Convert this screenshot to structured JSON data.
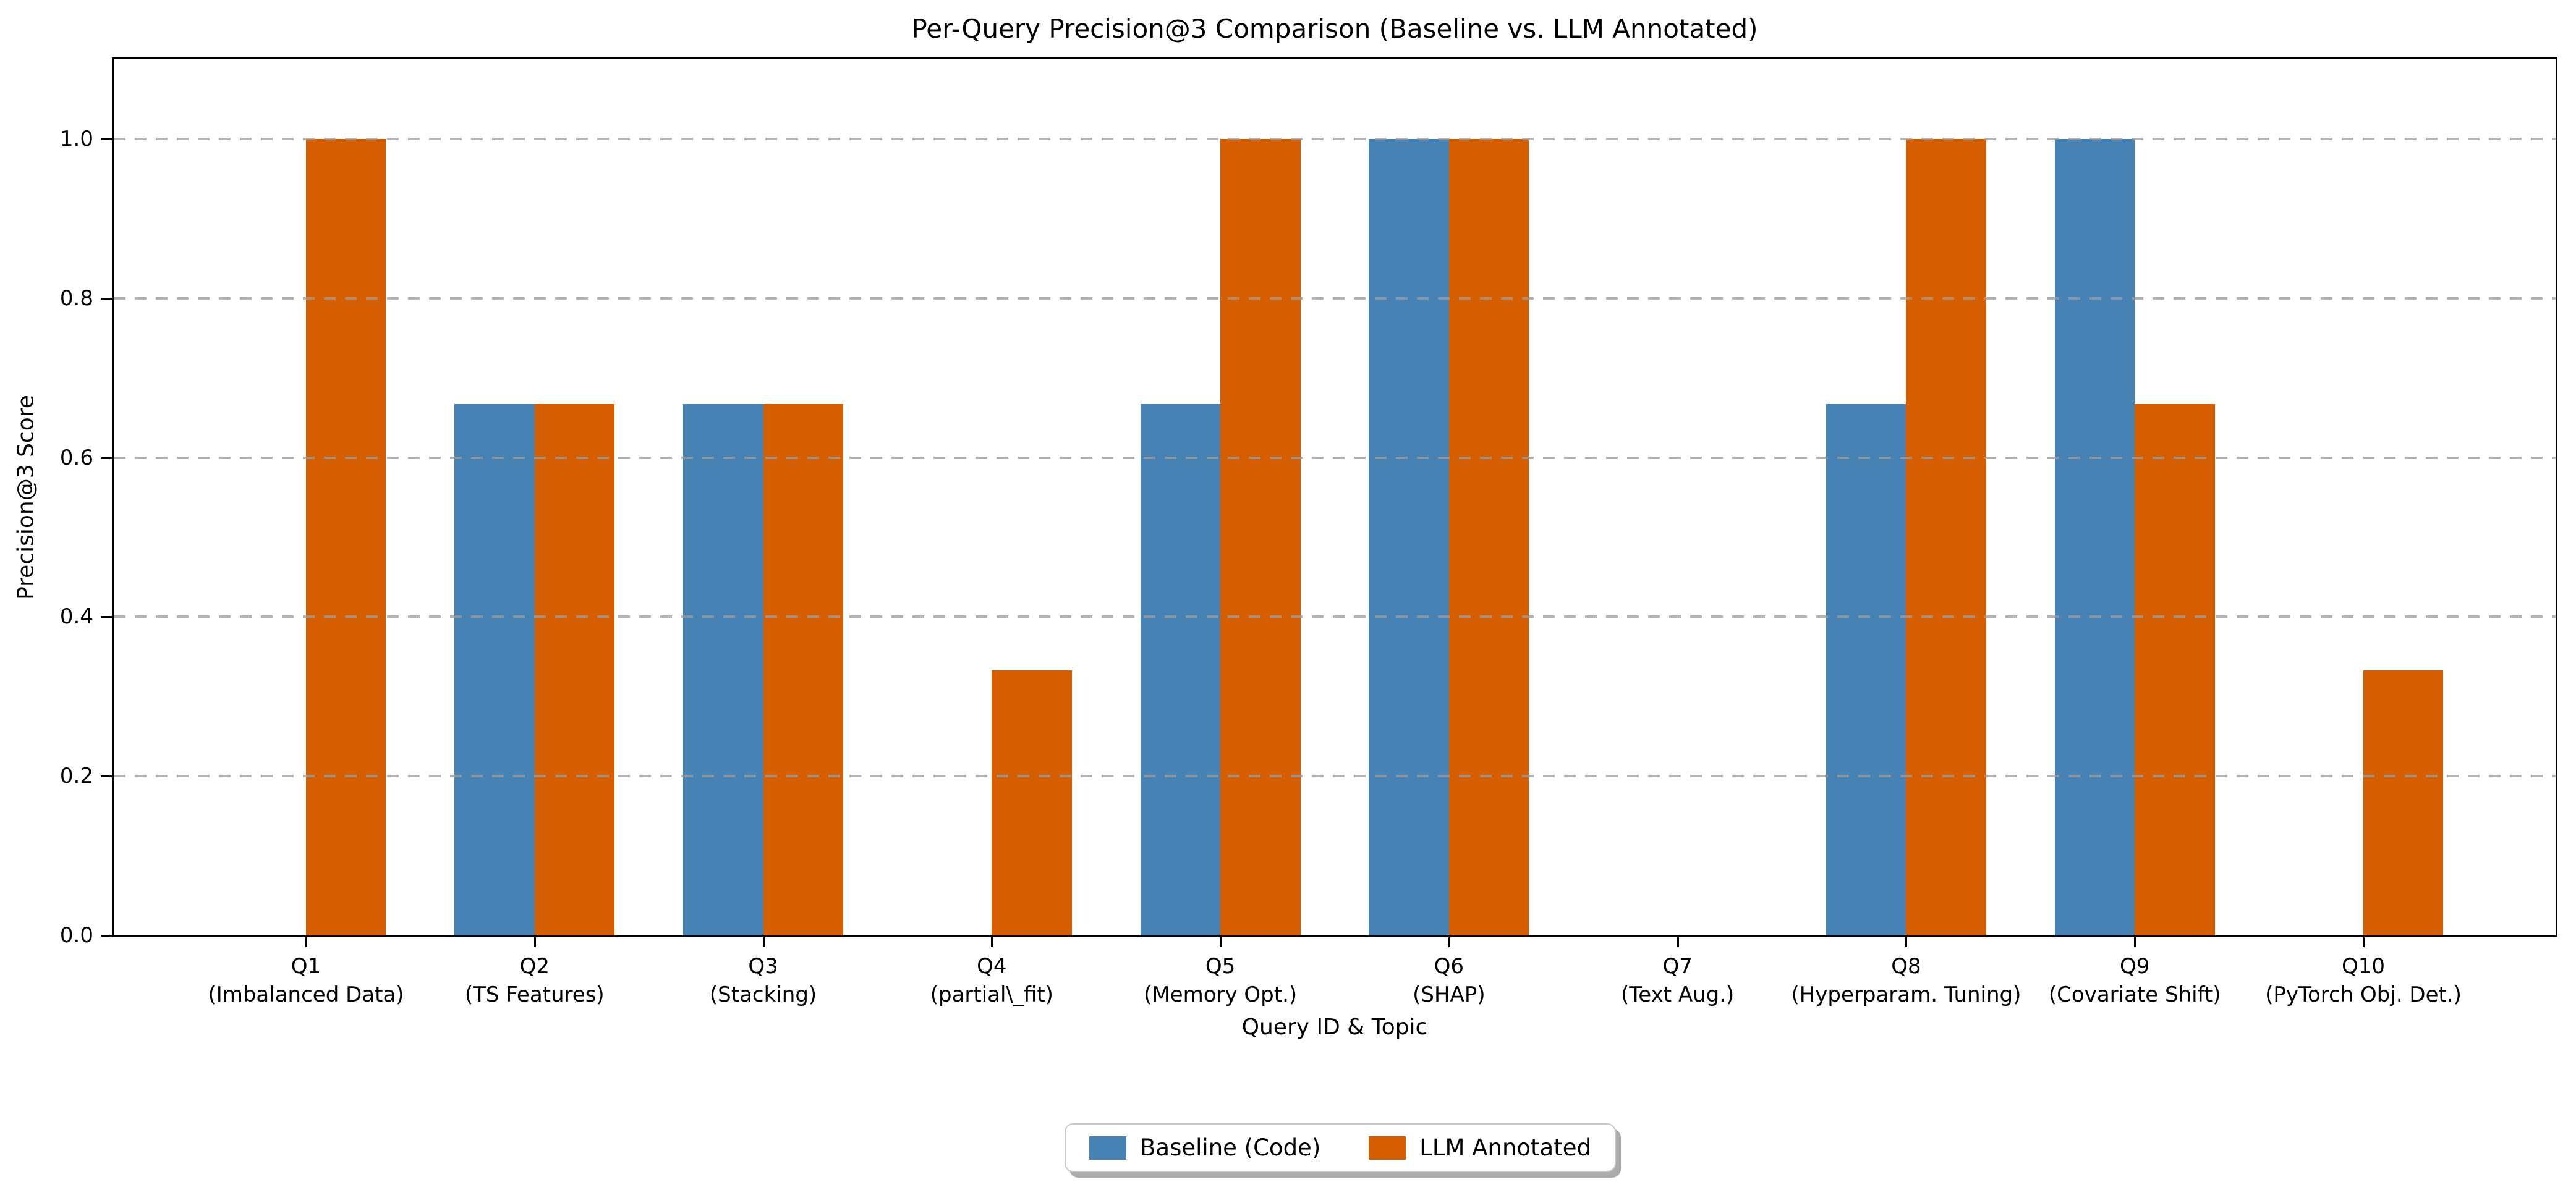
{
  "chart_data": {
    "type": "bar",
    "title": "Per-Query Precision@3 Comparison (Baseline vs. LLM Annotated)",
    "xlabel": "Query ID & Topic",
    "ylabel": "Precision@3 Score",
    "ylim": [
      0,
      1.1
    ],
    "yticks": [
      "0.0",
      "0.2",
      "0.4",
      "0.6",
      "0.8",
      "1.0"
    ],
    "ytick_values": [
      0.0,
      0.2,
      0.4,
      0.6,
      0.8,
      1.0
    ],
    "grid": "horizontal-dashed",
    "grid_color": "#9b9b9b",
    "legend_position": "bottom-center",
    "categories": [
      {
        "id": "Q1",
        "topic": "(Imbalanced Data)"
      },
      {
        "id": "Q2",
        "topic": "(TS Features)"
      },
      {
        "id": "Q3",
        "topic": "(Stacking)"
      },
      {
        "id": "Q4",
        "topic": "(partial\\_fit)"
      },
      {
        "id": "Q5",
        "topic": "(Memory Opt.)"
      },
      {
        "id": "Q6",
        "topic": "(SHAP)"
      },
      {
        "id": "Q7",
        "topic": "(Text Aug.)"
      },
      {
        "id": "Q8",
        "topic": "(Hyperparam. Tuning)"
      },
      {
        "id": "Q9",
        "topic": "(Covariate Shift)"
      },
      {
        "id": "Q10",
        "topic": "(PyTorch Obj. Det.)"
      }
    ],
    "series": [
      {
        "name": "Baseline (Code)",
        "color": "#4682B4",
        "values": [
          0.0,
          0.667,
          0.667,
          0.0,
          0.667,
          1.0,
          0.0,
          0.667,
          1.0,
          0.0
        ]
      },
      {
        "name": "LLM Annotated",
        "color": "#D55E00",
        "values": [
          1.0,
          0.667,
          0.667,
          0.333,
          1.0,
          1.0,
          0.0,
          1.0,
          0.667,
          0.333
        ]
      }
    ]
  }
}
